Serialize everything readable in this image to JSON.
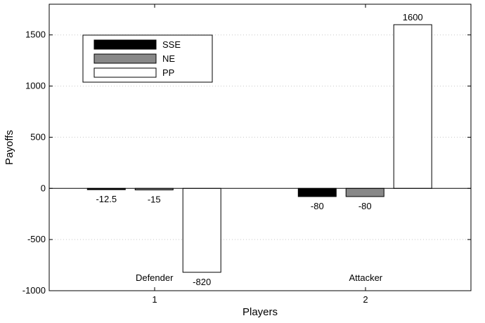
{
  "chart_data": {
    "type": "bar",
    "xlabel": "Players",
    "ylabel": "Payoffs",
    "categories": [
      "1",
      "2"
    ],
    "category_annotations": [
      "Defender",
      "Attacker"
    ],
    "ylim": [
      -1000,
      1800
    ],
    "yticks": [
      -1000,
      -500,
      0,
      500,
      1000,
      1500
    ],
    "xlim": [
      0.5,
      2.5
    ],
    "grid": "horizontal-dotted",
    "legend": "top-left",
    "series": [
      {
        "name": "SSE",
        "color": "#000000",
        "values": [
          -12.5,
          -80
        ],
        "labels": [
          "-12.5",
          "-80"
        ]
      },
      {
        "name": "NE",
        "color": "#888888",
        "values": [
          -15,
          -80
        ],
        "labels": [
          "-15",
          "-80"
        ]
      },
      {
        "name": "PP",
        "color": "#ffffff",
        "values": [
          -820,
          1600
        ],
        "labels": [
          "-820",
          "1600"
        ]
      }
    ]
  }
}
